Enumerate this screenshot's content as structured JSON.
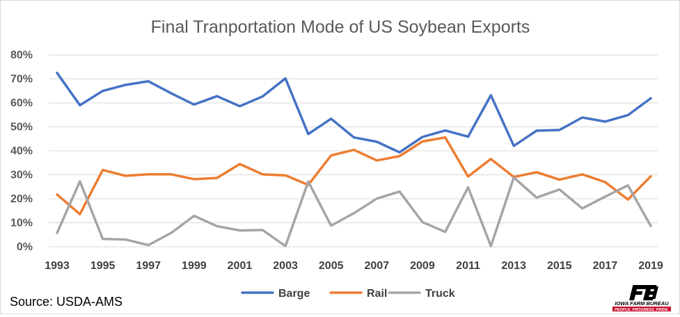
{
  "chart_data": {
    "type": "line",
    "title": "Final Tranportation Mode of US Soybean Exports",
    "xlabel": "",
    "ylabel": "",
    "x": [
      1993,
      1994,
      1995,
      1996,
      1997,
      1998,
      1999,
      2000,
      2001,
      2002,
      2003,
      2004,
      2005,
      2006,
      2007,
      2008,
      2009,
      2010,
      2011,
      2012,
      2013,
      2014,
      2015,
      2016,
      2017,
      2018,
      2019
    ],
    "x_tick_labels": [
      "1993",
      "1995",
      "1997",
      "1999",
      "2001",
      "2003",
      "2005",
      "2007",
      "2009",
      "2011",
      "2013",
      "2015",
      "2017",
      "2019"
    ],
    "y_tick_labels": [
      "0%",
      "10%",
      "20%",
      "30%",
      "40%",
      "50%",
      "60%",
      "70%",
      "80%"
    ],
    "ylim": [
      0,
      80
    ],
    "y_unit": "%",
    "grid": true,
    "legend_position": "bottom",
    "series": [
      {
        "name": "Barge",
        "color": "#4472C4",
        "values": [
          72.5,
          59,
          65,
          67.5,
          69,
          64,
          59.3,
          62.8,
          58.6,
          62.7,
          70.2,
          47,
          53.4,
          45.6,
          43.8,
          39.4,
          45.8,
          48.5,
          45.9,
          63.2,
          42.1,
          48.4,
          48.7,
          53.9,
          52.2,
          54.9,
          61.9
        ]
      },
      {
        "name": "Rail",
        "color": "#ED7D31",
        "values": [
          21.8,
          13.6,
          32,
          29.6,
          30.2,
          30.2,
          28.2,
          28.7,
          34.5,
          30.2,
          29.8,
          25.8,
          38.1,
          40.4,
          36,
          37.8,
          43.9,
          45.6,
          29.3,
          36.6,
          29.1,
          31.1,
          28,
          30.2,
          27,
          19.7,
          29.4
        ]
      },
      {
        "name": "Truck",
        "color": "#A5A5A5",
        "values": [
          5.8,
          27.3,
          3.3,
          3,
          0.7,
          5.8,
          12.9,
          8.6,
          6.8,
          7,
          0.3,
          27.2,
          8.8,
          14,
          20.1,
          23,
          10.3,
          6.2,
          24.8,
          0.3,
          28.9,
          20.5,
          23.9,
          16,
          20.9,
          25.6,
          8.7
        ]
      }
    ]
  },
  "source_text": "Source: USDA-AMS",
  "logo": {
    "mark": "FB",
    "name": "IOWA FARM BUREAU",
    "tagline": "PEOPLE. PROGRESS. PRIDE.",
    "color": "#000000",
    "accent": "#c8102e"
  }
}
